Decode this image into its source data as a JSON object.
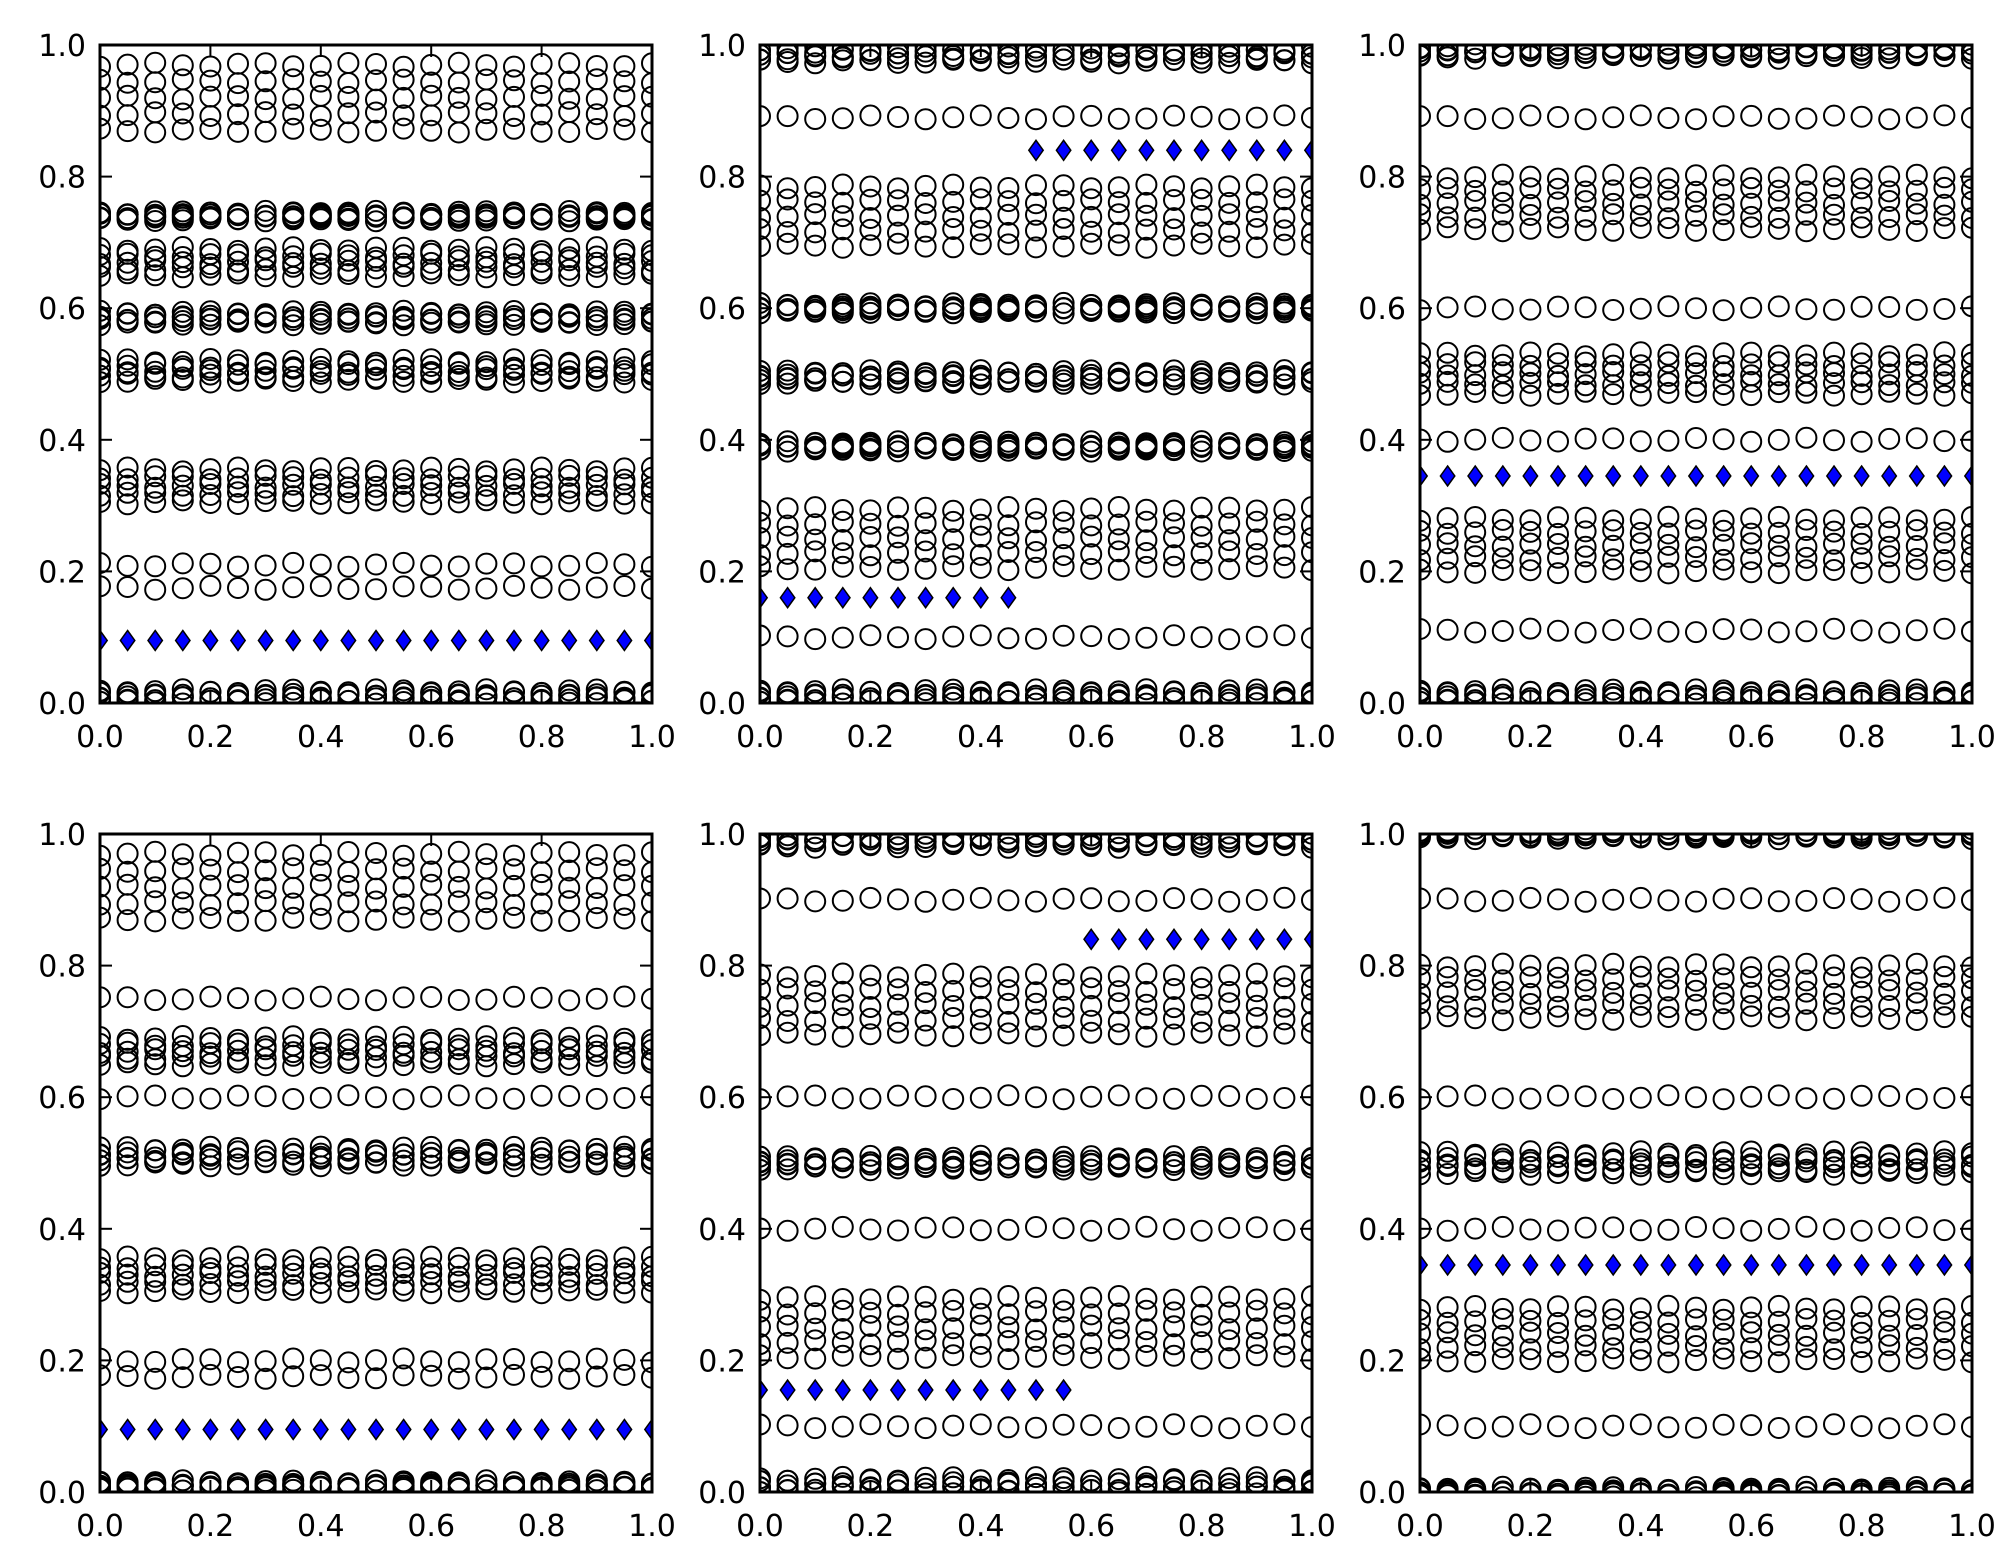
{
  "style": {
    "ring_color": "#000000",
    "marker_fill": "#0000ff",
    "marker_stroke": "#000000",
    "background": "#ffffff"
  },
  "chart_data": [
    {
      "type": "scatter",
      "xlim": [
        0.0,
        1.0
      ],
      "ylim": [
        0.0,
        1.0
      ],
      "x_ticks": [
        "0.0",
        "0.2",
        "0.4",
        "0.6",
        "0.8",
        "1.0"
      ],
      "y_ticks": [
        "0.0",
        "0.2",
        "0.4",
        "0.6",
        "0.8",
        "1.0"
      ],
      "grid": false,
      "circle_rows": [
        {
          "y": 0.01,
          "spread": 0.008
        },
        {
          "y": 0.175,
          "spread": 0.0
        },
        {
          "y": 0.21,
          "spread": 0.0
        },
        {
          "y": 0.33,
          "spread": 0.025
        },
        {
          "y": 0.505,
          "spread": 0.015
        },
        {
          "y": 0.585,
          "spread": 0.008
        },
        {
          "y": 0.67,
          "spread": 0.02
        },
        {
          "y": 0.74,
          "spread": 0.005
        },
        {
          "y": 0.92,
          "spread": 0.05
        }
      ],
      "diamond_series": [
        {
          "x_start": 0.0,
          "x_end": 1.0,
          "y": 0.095
        }
      ]
    },
    {
      "type": "scatter",
      "xlim": [
        0.0,
        1.0
      ],
      "ylim": [
        0.0,
        1.0
      ],
      "x_ticks": [
        "0.0",
        "0.2",
        "0.4",
        "0.6",
        "0.8",
        "1.0"
      ],
      "y_ticks": [
        "0.0",
        "0.2",
        "0.4",
        "0.6",
        "0.8",
        "1.0"
      ],
      "grid": false,
      "circle_rows": [
        {
          "y": 0.01,
          "spread": 0.008
        },
        {
          "y": 0.1,
          "spread": 0.0
        },
        {
          "y": 0.25,
          "spread": 0.045
        },
        {
          "y": 0.39,
          "spread": 0.005
        },
        {
          "y": 0.495,
          "spread": 0.008
        },
        {
          "y": 0.6,
          "spread": 0.005
        },
        {
          "y": 0.74,
          "spread": 0.045
        },
        {
          "y": 0.89,
          "spread": 0.0
        },
        {
          "y": 0.985,
          "spread": 0.01
        }
      ],
      "diamond_series": [
        {
          "x_start": 0.0,
          "x_end": 0.45,
          "y": 0.16
        },
        {
          "x_start": 0.5,
          "x_end": 1.0,
          "y": 0.84
        }
      ]
    },
    {
      "type": "scatter",
      "xlim": [
        0.0,
        1.0
      ],
      "ylim": [
        0.0,
        1.0
      ],
      "x_ticks": [
        "0.0",
        "0.2",
        "0.4",
        "0.6",
        "0.8",
        "1.0"
      ],
      "y_ticks": [
        "0.0",
        "0.2",
        "0.4",
        "0.6",
        "0.8",
        "1.0"
      ],
      "grid": false,
      "circle_rows": [
        {
          "y": 0.01,
          "spread": 0.008
        },
        {
          "y": 0.11,
          "spread": 0.0
        },
        {
          "y": 0.24,
          "spread": 0.04
        },
        {
          "y": 0.4,
          "spread": 0.0
        },
        {
          "y": 0.5,
          "spread": 0.03
        },
        {
          "y": 0.6,
          "spread": 0.0
        },
        {
          "y": 0.76,
          "spread": 0.04
        },
        {
          "y": 0.89,
          "spread": 0.0
        },
        {
          "y": 0.99,
          "spread": 0.008
        }
      ],
      "diamond_series": [
        {
          "x_start": 0.0,
          "x_end": 1.0,
          "y": 0.345
        }
      ]
    },
    {
      "type": "scatter",
      "xlim": [
        0.0,
        1.0
      ],
      "ylim": [
        0.0,
        1.0
      ],
      "x_ticks": [
        "0.0",
        "0.2",
        "0.4",
        "0.6",
        "0.8",
        "1.0"
      ],
      "y_ticks": [
        "0.0",
        "0.2",
        "0.4",
        "0.6",
        "0.8",
        "1.0"
      ],
      "grid": false,
      "circle_rows": [
        {
          "y": 0.01,
          "spread": 0.005
        },
        {
          "y": 0.175,
          "spread": 0.0
        },
        {
          "y": 0.2,
          "spread": 0.0
        },
        {
          "y": 0.33,
          "spread": 0.025
        },
        {
          "y": 0.51,
          "spread": 0.012
        },
        {
          "y": 0.6,
          "spread": 0.0
        },
        {
          "y": 0.67,
          "spread": 0.02
        },
        {
          "y": 0.75,
          "spread": 0.0
        },
        {
          "y": 0.92,
          "spread": 0.05
        }
      ],
      "diamond_series": [
        {
          "x_start": 0.0,
          "x_end": 1.0,
          "y": 0.095
        }
      ]
    },
    {
      "type": "scatter",
      "xlim": [
        0.0,
        1.0
      ],
      "ylim": [
        0.0,
        1.0
      ],
      "x_ticks": [
        "0.0",
        "0.2",
        "0.4",
        "0.6",
        "0.8",
        "1.0"
      ],
      "y_ticks": [
        "0.0",
        "0.2",
        "0.4",
        "0.6",
        "0.8",
        "1.0"
      ],
      "grid": false,
      "circle_rows": [
        {
          "y": 0.01,
          "spread": 0.01
        },
        {
          "y": 0.1,
          "spread": 0.0
        },
        {
          "y": 0.25,
          "spread": 0.045
        },
        {
          "y": 0.4,
          "spread": 0.0
        },
        {
          "y": 0.5,
          "spread": 0.008
        },
        {
          "y": 0.6,
          "spread": 0.0
        },
        {
          "y": 0.74,
          "spread": 0.045
        },
        {
          "y": 0.9,
          "spread": 0.0
        },
        {
          "y": 0.99,
          "spread": 0.008
        }
      ],
      "diamond_series": [
        {
          "x_start": 0.0,
          "x_end": 0.55,
          "y": 0.155
        },
        {
          "x_start": 0.6,
          "x_end": 1.0,
          "y": 0.84
        }
      ]
    },
    {
      "type": "scatter",
      "xlim": [
        0.0,
        1.0
      ],
      "ylim": [
        0.0,
        1.0
      ],
      "x_ticks": [
        "0.0",
        "0.2",
        "0.4",
        "0.6",
        "0.8",
        "1.0"
      ],
      "y_ticks": [
        "0.0",
        "0.2",
        "0.4",
        "0.6",
        "0.8",
        "1.0"
      ],
      "grid": false,
      "circle_rows": [
        {
          "y": 0.0,
          "spread": 0.005
        },
        {
          "y": 0.1,
          "spread": 0.0
        },
        {
          "y": 0.24,
          "spread": 0.04
        },
        {
          "y": 0.4,
          "spread": 0.0
        },
        {
          "y": 0.5,
          "spread": 0.015
        },
        {
          "y": 0.6,
          "spread": 0.0
        },
        {
          "y": 0.76,
          "spread": 0.04
        },
        {
          "y": 0.9,
          "spread": 0.0
        },
        {
          "y": 1.0,
          "spread": 0.005
        }
      ],
      "diamond_series": [
        {
          "x_start": 0.0,
          "x_end": 1.0,
          "y": 0.345
        }
      ]
    }
  ]
}
